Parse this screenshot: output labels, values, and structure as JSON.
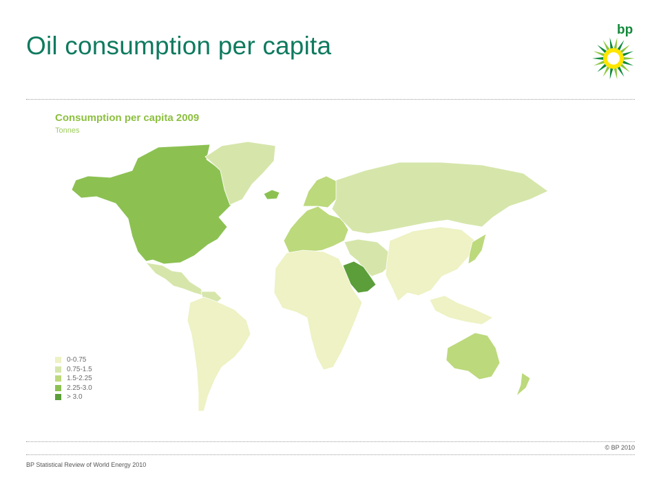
{
  "slide": {
    "title": "Oil consumption per capita",
    "logo_text": "bp",
    "copyright": "© BP 2010",
    "footer": "BP Statistical Review of World Energy 2010"
  },
  "map": {
    "title": "Consumption per capita 2009",
    "subtitle": "Tonnes"
  },
  "legend": [
    {
      "label": "0-0.75",
      "color": "#eef2c4"
    },
    {
      "label": "0.75-1.5",
      "color": "#d6e6ab"
    },
    {
      "label": "1.5-2.25",
      "color": "#bcd97c"
    },
    {
      "label": "2.25-3.0",
      "color": "#8cc152"
    },
    {
      "label": "> 3.0",
      "color": "#5b9e3a"
    }
  ],
  "regions": [
    {
      "name": "North America",
      "bin": "2.25-3.0"
    },
    {
      "name": "Greenland",
      "bin": "0.75-1.5"
    },
    {
      "name": "Mexico & Central America",
      "bin": "0.75-1.5"
    },
    {
      "name": "South America",
      "bin": "0-0.75"
    },
    {
      "name": "Venezuela",
      "bin": "0.75-1.5"
    },
    {
      "name": "Europe",
      "bin": "1.5-2.25"
    },
    {
      "name": "Scandinavia",
      "bin": "1.5-2.25"
    },
    {
      "name": "Russia & Central Asia",
      "bin": "0.75-1.5"
    },
    {
      "name": "Africa",
      "bin": "0-0.75"
    },
    {
      "name": "Saudi Arabia",
      "bin": "> 3.0"
    },
    {
      "name": "Middle East",
      "bin": "0.75-1.5"
    },
    {
      "name": "China & South Asia",
      "bin": "0-0.75"
    },
    {
      "name": "Japan & Korea",
      "bin": "1.5-2.25"
    },
    {
      "name": "Southeast Asia",
      "bin": "0-0.75"
    },
    {
      "name": "Australia",
      "bin": "1.5-2.25"
    },
    {
      "name": "New Zealand",
      "bin": "1.5-2.25"
    },
    {
      "name": "Iceland",
      "bin": "2.25-3.0"
    }
  ]
}
